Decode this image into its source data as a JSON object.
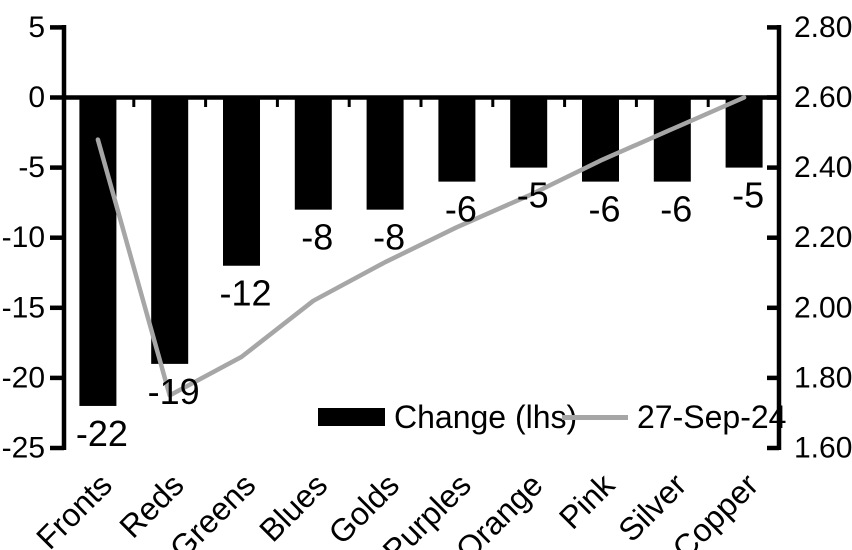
{
  "chart_data": {
    "type": "bar",
    "subtype": "combo-bar-line",
    "title": "",
    "xlabel": "",
    "ylabel": "",
    "background": "#ffffff",
    "grid": false,
    "categories": [
      "Fronts",
      "Reds",
      "Greens",
      "Blues",
      "Golds",
      "Purples",
      "Orange",
      "Pink",
      "Silver",
      "Copper"
    ],
    "series": [
      {
        "name": "Change (lhs)",
        "type": "bar",
        "axis": "left",
        "color": "#000000",
        "values": [
          -22,
          -19,
          -12,
          -8,
          -8,
          -6,
          -5,
          -6,
          -6,
          -5
        ],
        "data_labels": [
          "-22",
          "-19",
          "-12",
          "-8",
          "-8",
          "-6",
          "-5",
          "-6",
          "-6",
          "-5"
        ]
      },
      {
        "name": "27-Sep-24",
        "type": "line",
        "axis": "right",
        "color": "#a6a6a6",
        "values": [
          2.48,
          1.75,
          1.86,
          2.02,
          2.13,
          2.23,
          2.32,
          2.42,
          2.51,
          2.6
        ]
      }
    ],
    "left_axis": {
      "min": -25,
      "max": 5,
      "step": 5,
      "tick_labels": [
        "5",
        "0",
        "-5",
        "-10",
        "-15",
        "-20",
        "-25"
      ]
    },
    "right_axis": {
      "min": 1.6,
      "max": 2.8,
      "step": 0.2,
      "tick_labels": [
        "2.80",
        "2.60",
        "2.40",
        "2.20",
        "2.00",
        "1.80",
        "1.60"
      ]
    },
    "legend": {
      "position": "bottom-inside",
      "items": [
        {
          "label": "Change (lhs)",
          "swatch": "bar",
          "color": "#000000"
        },
        {
          "label": "27-Sep-24",
          "swatch": "line",
          "color": "#a6a6a6"
        }
      ]
    },
    "axis_color": "#000000",
    "text_color": "#000000"
  }
}
